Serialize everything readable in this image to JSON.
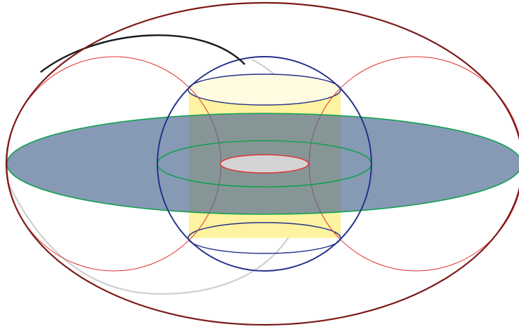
{
  "colors": {
    "background": "#ffffff",
    "outer_ellipse_stroke": "#7a1a1a",
    "torus_circle_stroke": "#e03030",
    "sphere_stroke": "#25308a",
    "cylinder_fill": "#fdf3a0",
    "cylinder_top_fill": "#fffbe0",
    "cylinder_stroke": "#25308a",
    "disk_fill": "#4d6a93",
    "disk_stroke": "#13a050",
    "inner_ring_stroke": "#13a050",
    "hole_fill": "#d4d4d4",
    "hole_stroke": "#e03030",
    "front_arc_stroke": "#1a1a1a",
    "back_arc_stroke": "#cfcfcf"
  }
}
